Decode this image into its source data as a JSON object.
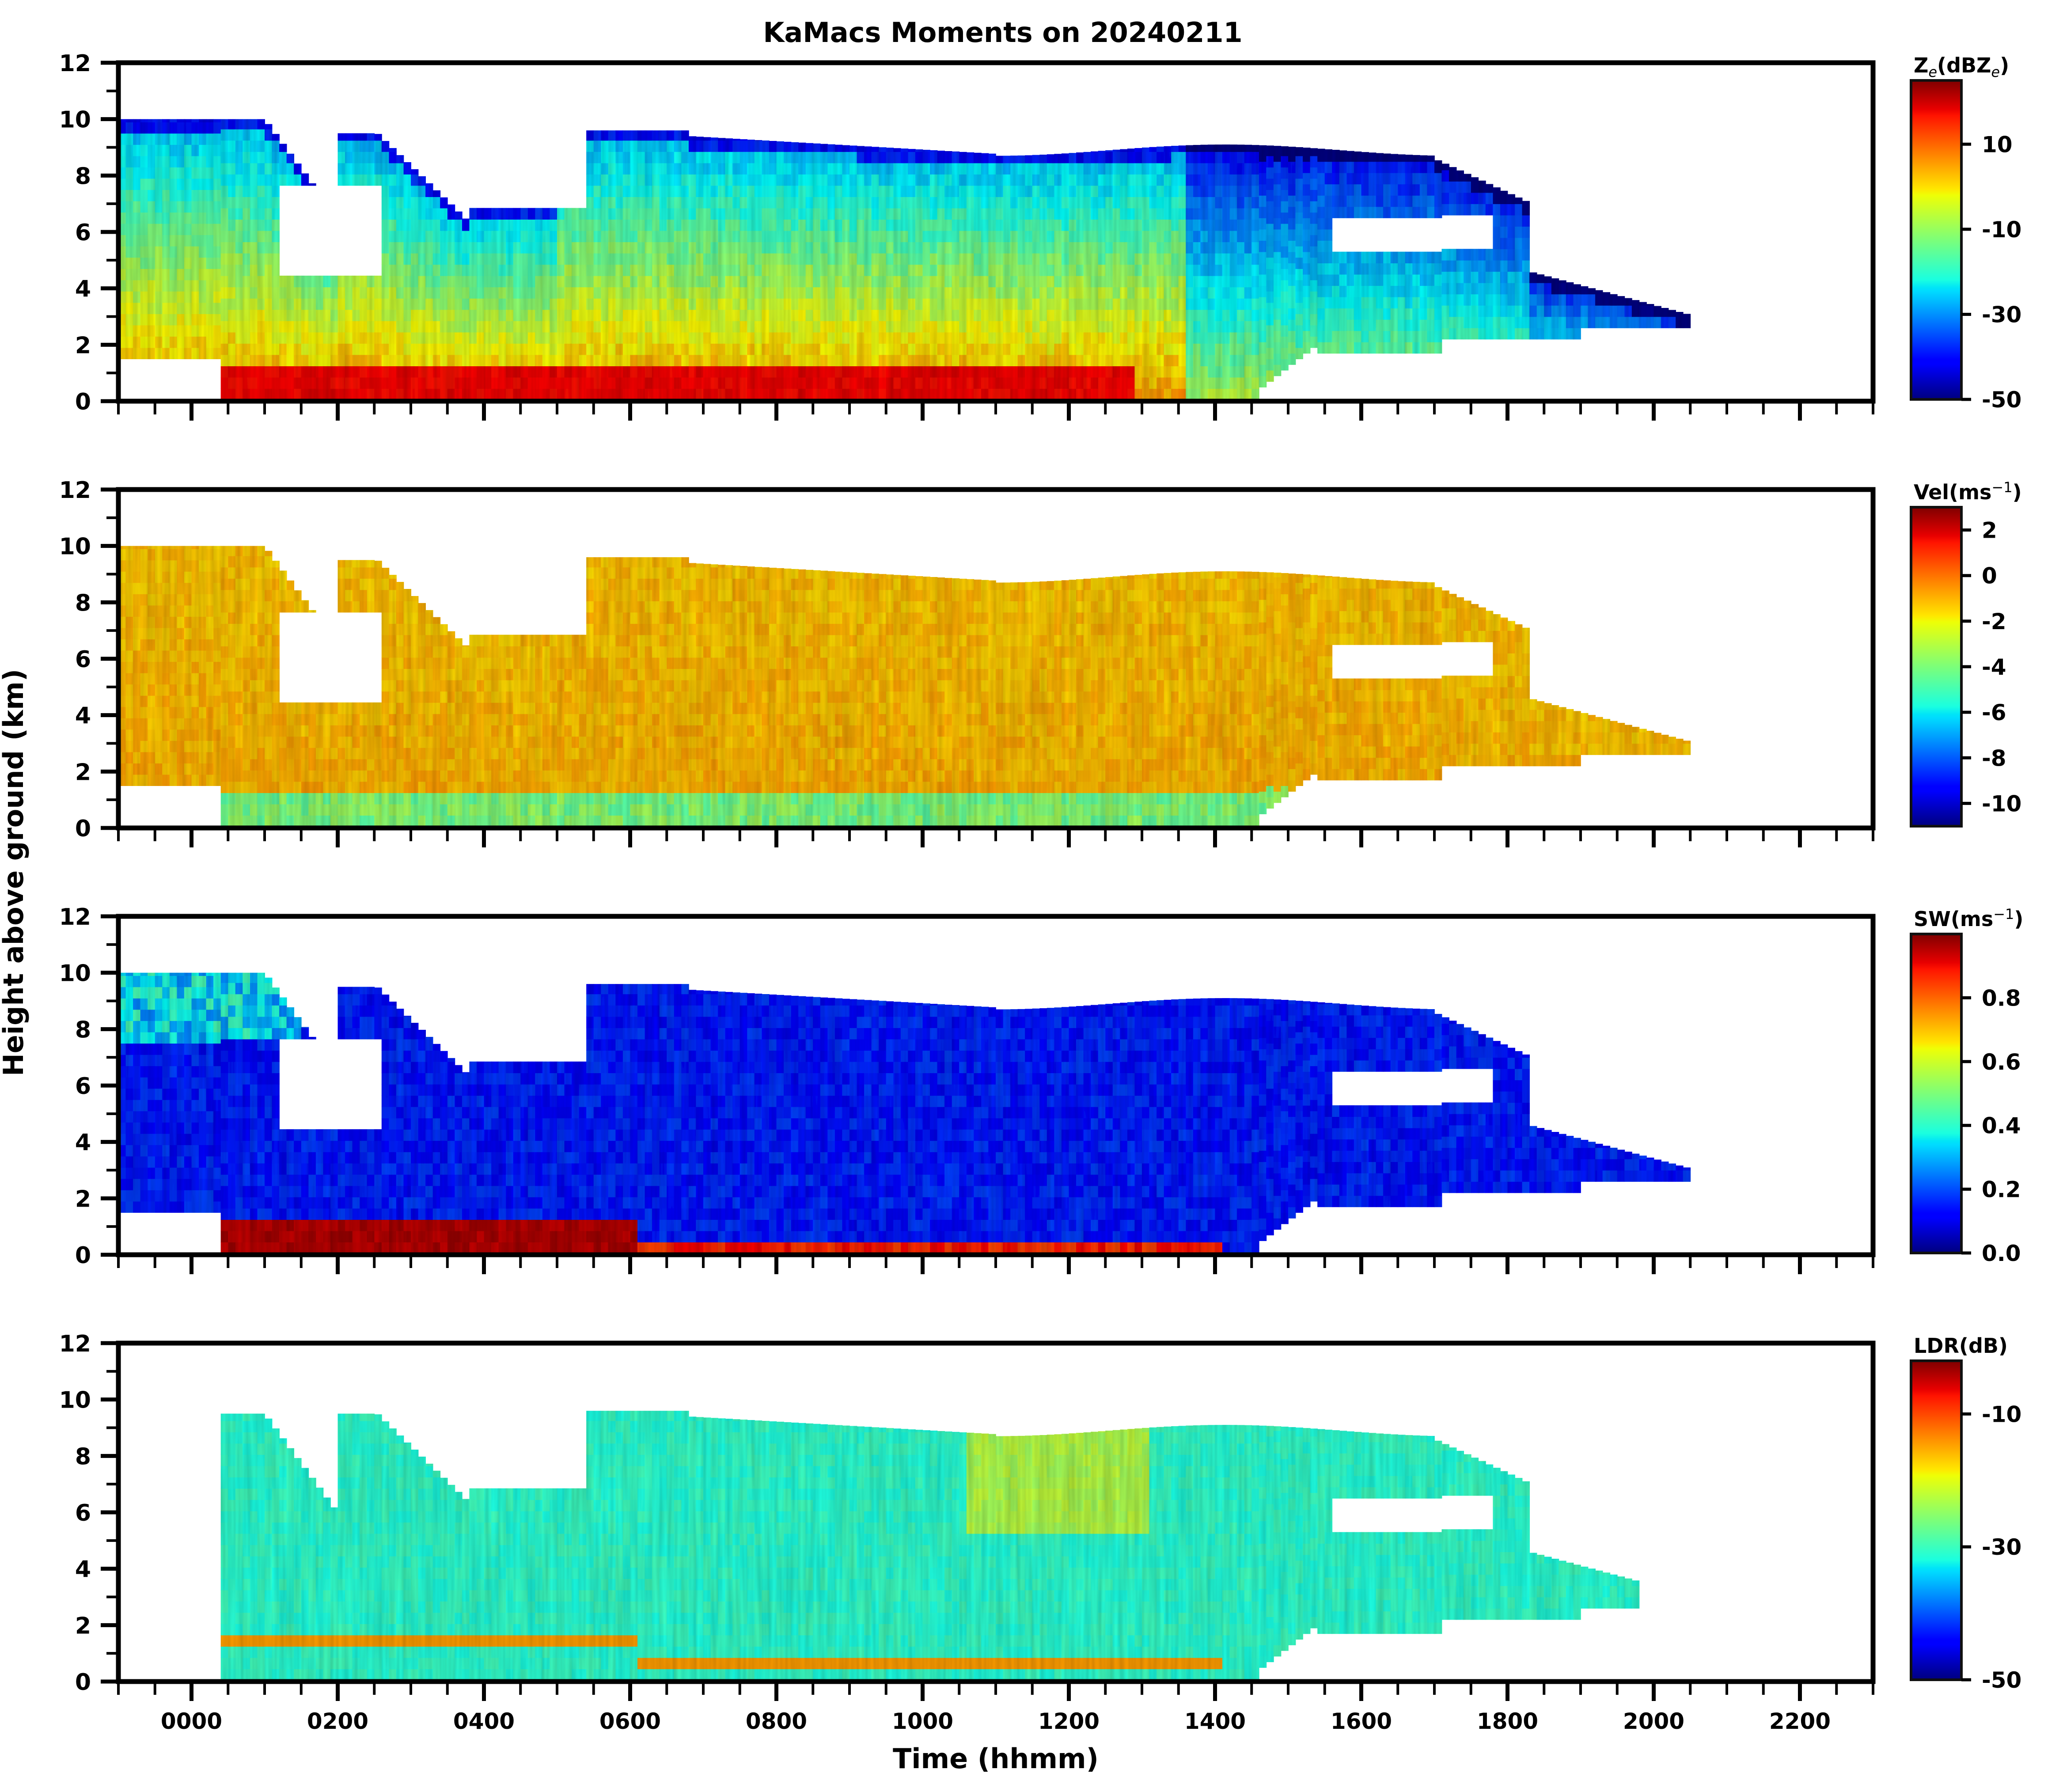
{
  "chart_data": {
    "type": "heatmap",
    "title": "KaMacs Moments on 20240211",
    "xlabel": "Time (hhmm)",
    "ylabel": "Height above ground (km)",
    "xlim_hours": [
      -1,
      23
    ],
    "x_ticks": [
      {
        "hour": 0,
        "label": "0000"
      },
      {
        "hour": 2,
        "label": "0200"
      },
      {
        "hour": 4,
        "label": "0400"
      },
      {
        "hour": 6,
        "label": "0600"
      },
      {
        "hour": 8,
        "label": "0800"
      },
      {
        "hour": 10,
        "label": "1000"
      },
      {
        "hour": 12,
        "label": "1200"
      },
      {
        "hour": 14,
        "label": "1400"
      },
      {
        "hour": 16,
        "label": "1600"
      },
      {
        "hour": 18,
        "label": "1800"
      },
      {
        "hour": 20,
        "label": "2000"
      },
      {
        "hour": 22,
        "label": "2200"
      }
    ],
    "x_minor_step_hours": 0.5,
    "ylim": [
      0,
      12
    ],
    "y_ticks": [
      "0",
      "2",
      "4",
      "6",
      "8",
      "10",
      "12"
    ],
    "y_minor_step": 1,
    "colormap": "jet",
    "panels": [
      {
        "variable": "Ze",
        "colorbar_label_main": "Z",
        "colorbar_label_sub": "e",
        "colorbar_label_mid": "(dBZ",
        "colorbar_label_sub2": "e",
        "colorbar_label_end": ")",
        "clim": [
          -50,
          25
        ],
        "colorbar_ticks": [
          "10",
          "-10",
          "-30",
          "-50"
        ],
        "colorbar_tick_values": [
          10,
          -10,
          -30,
          -50
        ],
        "cloud_top_km": 10,
        "echo_end_hour": 20.5
      },
      {
        "variable": "Vel",
        "colorbar_label_main": "Vel(ms",
        "colorbar_label_sup": "−1",
        "colorbar_label_end": ")",
        "clim": [
          -11,
          3
        ],
        "colorbar_ticks": [
          "2",
          "0",
          "-2",
          "-4",
          "-6",
          "-8",
          "-10"
        ],
        "colorbar_tick_values": [
          2,
          0,
          -2,
          -4,
          -6,
          -8,
          -10
        ],
        "cloud_top_km": 10,
        "echo_end_hour": 20.5
      },
      {
        "variable": "SW",
        "colorbar_label_main": "SW(ms",
        "colorbar_label_sup": "−1",
        "colorbar_label_end": ")",
        "clim": [
          0,
          1
        ],
        "colorbar_ticks": [
          "0.8",
          "0.6",
          "0.4",
          "0.2",
          "0.0"
        ],
        "colorbar_tick_values": [
          0.8,
          0.6,
          0.4,
          0.2,
          0.0
        ],
        "cloud_top_km": 10,
        "echo_end_hour": 20.5
      },
      {
        "variable": "LDR",
        "colorbar_label_main": "LDR(dB)",
        "clim": [
          -50,
          -2
        ],
        "colorbar_ticks": [
          "-10",
          "-30",
          "-50"
        ],
        "colorbar_tick_values": [
          -10,
          -30,
          -50
        ],
        "cloud_top_km": 9.5,
        "echo_end_hour": 19.8
      }
    ]
  }
}
